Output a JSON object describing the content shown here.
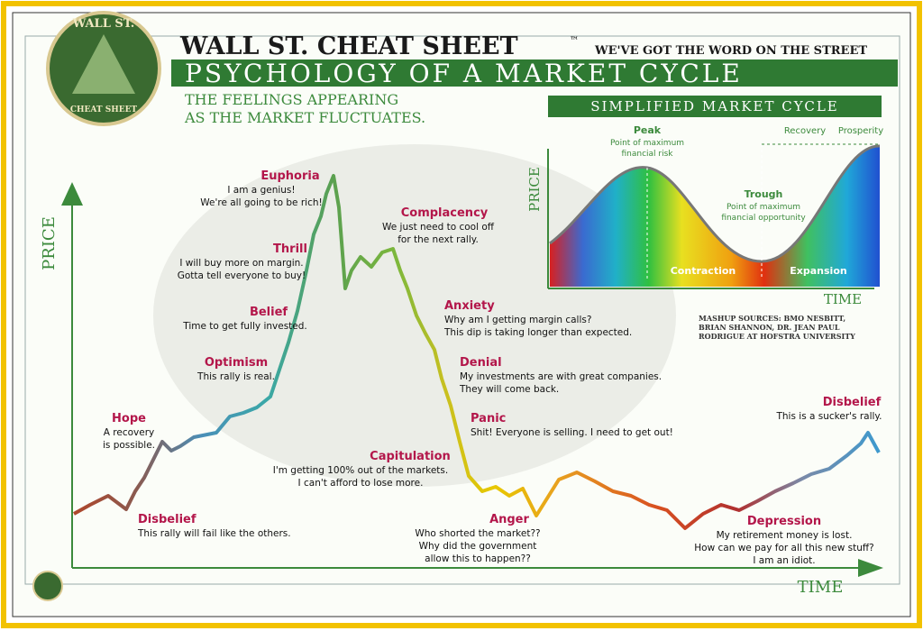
{
  "header": {
    "logo_top": "WALL ST.",
    "logo_bottom": "CHEAT SHEET",
    "brand": "WALL ST. CHEAT SHEET",
    "trademark": "™",
    "tagline": "WE'VE GOT THE WORD ON THE STREET",
    "title": "PSYCHOLOGY OF A MARKET CYCLE",
    "subtitle_lines": [
      "THE FEELINGS APPEARING",
      "AS THE MARKET FLUCTUATES."
    ]
  },
  "axes": {
    "y": "PRICE",
    "x": "TIME"
  },
  "stages": [
    {
      "name": "Hope",
      "lines": [
        "A recovery",
        "is possible."
      ]
    },
    {
      "name": "Disbelief",
      "lines": [
        "This rally will fail like the others."
      ]
    },
    {
      "name": "Optimism",
      "lines": [
        "This rally is real."
      ]
    },
    {
      "name": "Belief",
      "lines": [
        "Time to get fully invested."
      ]
    },
    {
      "name": "Thrill",
      "lines": [
        "I will buy more on margin.",
        "Gotta tell everyone to buy!"
      ]
    },
    {
      "name": "Euphoria",
      "lines": [
        "I am a genius!",
        "We're all going to be rich!"
      ]
    },
    {
      "name": "Complacency",
      "lines": [
        "We just need to cool off",
        "for the next rally."
      ]
    },
    {
      "name": "Anxiety",
      "lines": [
        "Why am I getting margin calls?",
        "This dip is taking longer than expected."
      ]
    },
    {
      "name": "Denial",
      "lines": [
        "My investments are with great companies.",
        "They will come back."
      ]
    },
    {
      "name": "Panic",
      "lines": [
        "Shit! Everyone is selling. I need to get out!"
      ]
    },
    {
      "name": "Capitulation",
      "lines": [
        "I'm getting 100% out of the markets.",
        "I can't afford to lose more."
      ]
    },
    {
      "name": "Anger",
      "lines": [
        "Who shorted the market??",
        "Why did the government",
        "allow this to happen??"
      ]
    },
    {
      "name": "Depression",
      "lines": [
        "My retirement money is lost.",
        "How can we pay for all this new stuff?",
        "I am an idiot."
      ]
    },
    {
      "name": "Disbelief",
      "lines": [
        "This is a sucker's rally."
      ]
    }
  ],
  "inset": {
    "title": "SIMPLIFIED MARKET CYCLE",
    "y": "PRICE",
    "x": "TIME",
    "peak": {
      "name": "Peak",
      "lines": [
        "Point of maximum",
        "financial risk"
      ]
    },
    "trough": {
      "name": "Trough",
      "lines": [
        "Point of maximum",
        "financial opportunity"
      ]
    },
    "contraction": "Contraction",
    "expansion": "Expansion",
    "recovery": "Recovery",
    "prosperity": "Prosperity"
  },
  "sources": [
    "MASHUP SOURCES: BMO NESBITT,",
    "BRIAN SHANNON, DR. JEAN PAUL",
    "RODRIGUE AT HOFSTRA UNIVERSITY"
  ]
}
